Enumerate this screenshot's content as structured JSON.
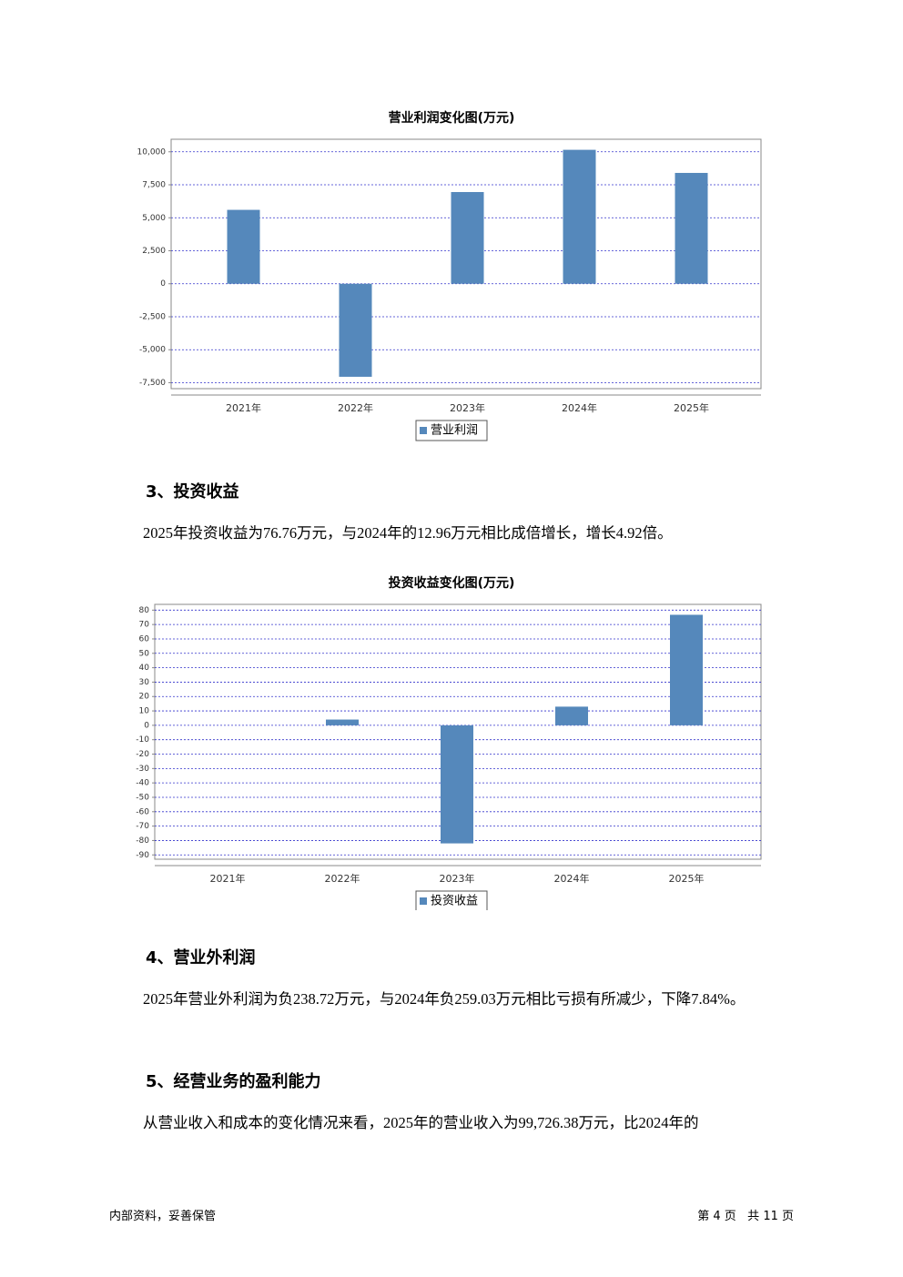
{
  "chart_data": [
    {
      "type": "bar",
      "title": "营业利润变化图(万元)",
      "categories": [
        "2021年",
        "2022年",
        "2023年",
        "2024年",
        "2025年"
      ],
      "series": [
        {
          "name": "营业利润",
          "color": "#5588bb",
          "values": [
            5600,
            -7050,
            6950,
            10150,
            8400
          ]
        }
      ],
      "ylim": [
        -7950,
        10950
      ],
      "yticks": [
        {
          "value": -7500,
          "label": "-7,500"
        },
        {
          "value": -5000,
          "label": "-5,000"
        },
        {
          "value": -2500,
          "label": "-2,500"
        },
        0,
        {
          "value": 2500,
          "label": "2,500"
        },
        {
          "value": 5000,
          "label": "5,000"
        },
        {
          "value": 7500,
          "label": "7,500"
        },
        {
          "value": 10000,
          "label": "10,000"
        }
      ],
      "grid": true,
      "legend": "bottom"
    },
    {
      "type": "bar",
      "title": "投资收益变化图(万元)",
      "categories": [
        "2021年",
        "2022年",
        "2023年",
        "2024年",
        "2025年"
      ],
      "series": [
        {
          "name": "投资收益",
          "color": "#5588bb",
          "values": [
            0,
            4,
            -82,
            12.96,
            76.76
          ]
        }
      ],
      "ylim": [
        -93,
        84
      ],
      "yticks": [
        -90,
        -80,
        -70,
        -60,
        -50,
        -40,
        -30,
        -20,
        -10,
        0,
        10,
        20,
        30,
        40,
        50,
        60,
        70,
        80
      ],
      "grid": true,
      "legend": "bottom"
    }
  ],
  "document": {
    "heading_3": "3、投资收益",
    "para_3": "2025年投资收益为76.76万元，与2024年的12.96万元相比成倍增长，增长4.92倍。",
    "heading_4": "4、营业外利润",
    "para_4": "2025年营业外利润为负238.72万元，与2024年负259.03万元相比亏损有所减少，下降7.84%。",
    "heading_5": "5、经营业务的盈利能力",
    "para_5": "从营业收入和成本的变化情况来看，2025年的营业收入为99,726.38万元，比2024年的",
    "footer_left": "内部资料，妥善保管",
    "footer_right": "第 4 页   共 11 页"
  }
}
